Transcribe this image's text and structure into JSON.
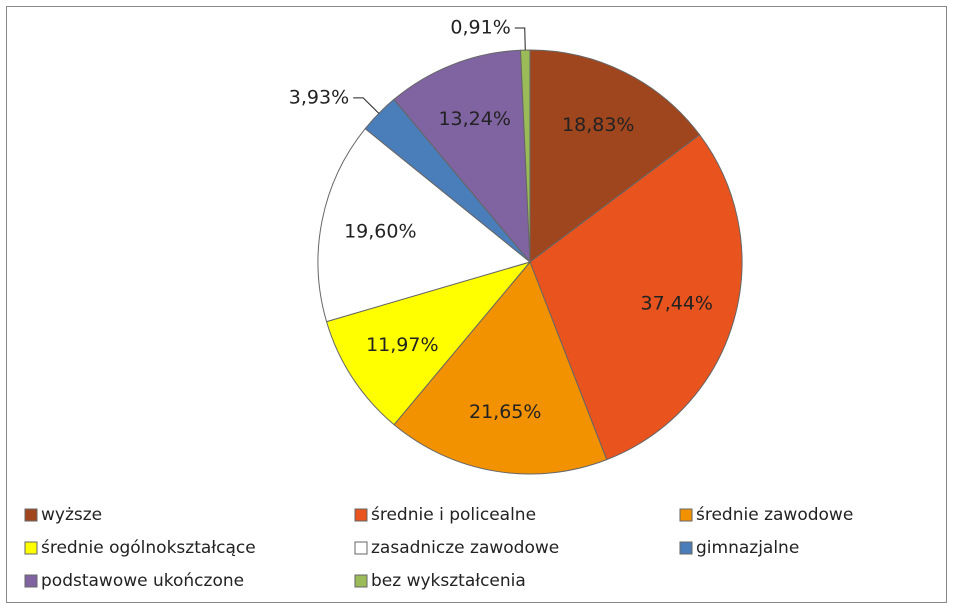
{
  "chart_data": {
    "type": "pie",
    "categories": [
      "wyższe",
      "średnie i policealne",
      "średnie zawodowe",
      "średnie ogólnokształcące",
      "zasadnicze zawodowe",
      "gimnazjalne",
      "podstawowe ukończone",
      "bez wykształcenia"
    ],
    "values": [
      18.83,
      37.44,
      21.65,
      11.97,
      19.6,
      3.93,
      13.24,
      0.91
    ],
    "value_labels": [
      "18,83%",
      "37,44%",
      "21,65%",
      "11,97%",
      "19,60%",
      "3,93%",
      "13,24%",
      "0,91%"
    ],
    "colors": [
      "#a0461e",
      "#e8531e",
      "#f39200",
      "#ffff00",
      "#ffffff",
      "#4a7ebb",
      "#8064a2",
      "#9bbb59"
    ],
    "legend": "bottom"
  }
}
